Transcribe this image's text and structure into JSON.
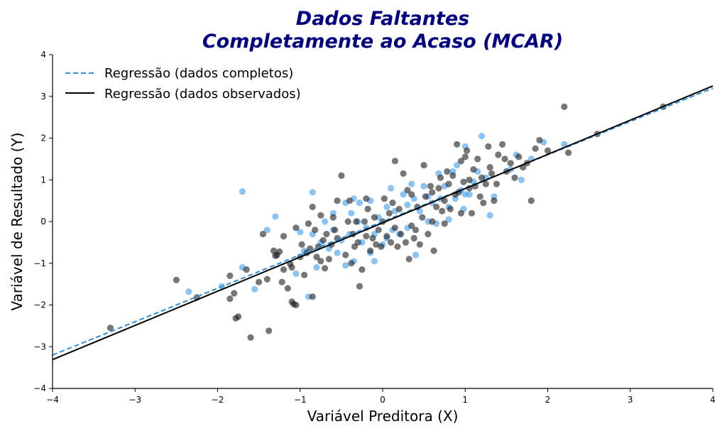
{
  "chart_data": {
    "type": "scatter",
    "title_line1": "Dados Faltantes",
    "title_line2": "Completamente ao Acaso (MCAR)",
    "xlabel": "Variável Preditora (X)",
    "ylabel": "Variável de Resultado (Y)",
    "xlim": [
      -4,
      4
    ],
    "ylim": [
      -4,
      4
    ],
    "xticks": [
      -4,
      -3,
      -2,
      -1,
      0,
      1,
      2,
      3,
      4
    ],
    "yticks": [
      -4,
      -3,
      -2,
      -1,
      0,
      1,
      2,
      3,
      4
    ],
    "xtick_labels": [
      "−4",
      "−3",
      "−2",
      "−1",
      "0",
      "1",
      "2",
      "3",
      "4"
    ],
    "ytick_labels": [
      "−4",
      "−3",
      "−2",
      "−1",
      "0",
      "1",
      "2",
      "3",
      "4"
    ],
    "legend_position": "top-left",
    "colors": {
      "title": "#000080",
      "observed": "#1a1a1a",
      "missing": "#3d9be9",
      "line_complete": "#2b8fdb",
      "line_observed": "#000000"
    },
    "lines": [
      {
        "name": "Regressão (dados completos)",
        "style": "dashed",
        "intercept": 0.0,
        "slope": 0.8
      },
      {
        "name": "Regressão (dados observados)",
        "style": "solid",
        "intercept": -0.03,
        "slope": 0.82
      }
    ],
    "series": [
      {
        "name": "observed",
        "points": [
          [
            -3.3,
            -2.55
          ],
          [
            -2.5,
            -1.4
          ],
          [
            -2.25,
            -1.82
          ],
          [
            -1.85,
            -1.3
          ],
          [
            -1.85,
            -1.85
          ],
          [
            -1.8,
            -1.72
          ],
          [
            -1.78,
            -2.32
          ],
          [
            -1.75,
            -2.28
          ],
          [
            -1.65,
            -1.15
          ],
          [
            -1.6,
            -2.78
          ],
          [
            -1.5,
            -1.45
          ],
          [
            -1.45,
            -0.3
          ],
          [
            -1.4,
            -1.38
          ],
          [
            -1.38,
            -2.62
          ],
          [
            -1.32,
            -0.7
          ],
          [
            -1.3,
            -0.82
          ],
          [
            -1.28,
            -0.8
          ],
          [
            -1.25,
            -0.72
          ],
          [
            -1.22,
            -1.45
          ],
          [
            -1.2,
            -1.15
          ],
          [
            -1.2,
            -0.35
          ],
          [
            -1.15,
            -1.6
          ],
          [
            -1.12,
            -1.02
          ],
          [
            -1.1,
            -1.1
          ],
          [
            -1.1,
            -1.92
          ],
          [
            -1.08,
            -1.98
          ],
          [
            -1.05,
            -2.0
          ],
          [
            -1.05,
            -0.15
          ],
          [
            -1.0,
            -0.85
          ],
          [
            -0.98,
            -0.55
          ],
          [
            -0.95,
            -1.28
          ],
          [
            -0.92,
            -0.75
          ],
          [
            -0.9,
            -0.05
          ],
          [
            -0.88,
            -0.65
          ],
          [
            -0.85,
            -1.8
          ],
          [
            -0.85,
            0.35
          ],
          [
            -0.82,
            -0.2
          ],
          [
            -0.8,
            -0.85
          ],
          [
            -0.78,
            -0.6
          ],
          [
            -0.75,
            -0.95
          ],
          [
            -0.75,
            0.15
          ],
          [
            -0.72,
            -0.45
          ],
          [
            -0.7,
            -1.12
          ],
          [
            -0.68,
            -0.3
          ],
          [
            -0.65,
            -0.9
          ],
          [
            -0.62,
            -0.55
          ],
          [
            -0.6,
            0.1
          ],
          [
            -0.58,
            -0.2
          ],
          [
            -0.55,
            -0.4
          ],
          [
            -0.5,
            1.1
          ],
          [
            -0.45,
            -0.8
          ],
          [
            -0.42,
            0.0
          ],
          [
            -0.4,
            0.5
          ],
          [
            -0.38,
            -1.0
          ],
          [
            -0.36,
            -0.3
          ],
          [
            -0.34,
            -0.6
          ],
          [
            -0.32,
            0.0
          ],
          [
            -0.3,
            -0.5
          ],
          [
            -0.28,
            -1.55
          ],
          [
            -0.25,
            -1.15
          ],
          [
            -0.22,
            0.0
          ],
          [
            -0.2,
            -0.35
          ],
          [
            -0.18,
            0.3
          ],
          [
            -0.15,
            -0.7
          ],
          [
            -0.12,
            -0.4
          ],
          [
            -0.1,
            0.1
          ],
          [
            -0.08,
            -0.55
          ],
          [
            -0.05,
            -0.2
          ],
          [
            -0.02,
            -0.6
          ],
          [
            0.0,
            0.0
          ],
          [
            0.02,
            0.55
          ],
          [
            0.05,
            -0.35
          ],
          [
            0.08,
            0.2
          ],
          [
            0.1,
            -0.5
          ],
          [
            0.12,
            0.45
          ],
          [
            0.15,
            -0.15
          ],
          [
            0.18,
            -0.6
          ],
          [
            0.2,
            0.3
          ],
          [
            0.22,
            -0.3
          ],
          [
            0.25,
            1.15
          ],
          [
            0.28,
            -0.5
          ],
          [
            0.3,
            0.75
          ],
          [
            0.32,
            -0.9
          ],
          [
            0.35,
            0.65
          ],
          [
            0.38,
            -0.4
          ],
          [
            0.4,
            -0.2
          ],
          [
            0.42,
            0.35
          ],
          [
            0.45,
            -0.55
          ],
          [
            0.48,
            0.1
          ],
          [
            0.5,
            1.35
          ],
          [
            0.52,
            0.6
          ],
          [
            0.55,
            -0.3
          ],
          [
            0.58,
            0.85
          ],
          [
            0.6,
            0.0
          ],
          [
            0.62,
            -0.7
          ],
          [
            0.65,
            0.35
          ],
          [
            0.68,
            0.8
          ],
          [
            0.7,
            1.05
          ],
          [
            0.72,
            0.25
          ],
          [
            0.75,
            0.5
          ],
          [
            0.78,
            1.2
          ],
          [
            0.8,
            0.9
          ],
          [
            0.82,
            0.3
          ],
          [
            0.85,
            1.1
          ],
          [
            0.88,
            0.65
          ],
          [
            0.9,
            1.85
          ],
          [
            0.92,
            0.7
          ],
          [
            0.95,
            1.45
          ],
          [
            0.98,
            0.95
          ],
          [
            1.0,
            1.55
          ],
          [
            1.02,
            1.7
          ],
          [
            1.05,
            0.8
          ],
          [
            1.08,
            0.2
          ],
          [
            1.1,
            1.25
          ],
          [
            1.12,
            0.85
          ],
          [
            1.15,
            1.5
          ],
          [
            1.18,
            0.6
          ],
          [
            1.2,
            1.05
          ],
          [
            1.22,
            0.45
          ],
          [
            1.25,
            0.9
          ],
          [
            1.28,
            1.8
          ],
          [
            1.3,
            1.3
          ],
          [
            1.32,
            1.15
          ],
          [
            1.35,
            0.5
          ],
          [
            1.38,
            0.9
          ],
          [
            1.4,
            1.6
          ],
          [
            1.45,
            1.85
          ],
          [
            1.48,
            1.5
          ],
          [
            1.5,
            1.2
          ],
          [
            1.55,
            1.4
          ],
          [
            1.6,
            1.05
          ],
          [
            1.65,
            1.55
          ],
          [
            1.7,
            1.3
          ],
          [
            1.75,
            1.4
          ],
          [
            1.8,
            0.5
          ],
          [
            1.85,
            1.75
          ],
          [
            1.9,
            1.95
          ],
          [
            2.0,
            1.7
          ],
          [
            2.2,
            2.75
          ],
          [
            2.25,
            1.65
          ],
          [
            2.6,
            2.1
          ],
          [
            3.4,
            2.75
          ],
          [
            -0.55,
            0.5
          ],
          [
            -0.2,
            0.55
          ],
          [
            0.15,
            1.45
          ],
          [
            0.35,
            -0.1
          ],
          [
            0.6,
            0.7
          ],
          [
            0.75,
            -0.05
          ],
          [
            0.95,
            0.2
          ],
          [
            1.05,
            1.0
          ]
        ]
      },
      {
        "name": "missing",
        "points": [
          [
            -2.35,
            -1.68
          ],
          [
            -1.95,
            -1.55
          ],
          [
            -1.7,
            -1.1
          ],
          [
            -1.7,
            0.72
          ],
          [
            -1.55,
            -1.62
          ],
          [
            -1.4,
            -0.2
          ],
          [
            -1.3,
            0.12
          ],
          [
            -1.05,
            -1.25
          ],
          [
            -1.0,
            -0.25
          ],
          [
            -0.95,
            -0.7
          ],
          [
            -0.9,
            -1.8
          ],
          [
            -0.85,
            -0.3
          ],
          [
            -0.85,
            0.7
          ],
          [
            -0.8,
            -1.1
          ],
          [
            -0.75,
            -0.5
          ],
          [
            -0.7,
            0.0
          ],
          [
            -0.65,
            -0.65
          ],
          [
            -0.6,
            -0.2
          ],
          [
            -0.6,
            0.2
          ],
          [
            -0.55,
            -0.75
          ],
          [
            -0.5,
            -0.45
          ],
          [
            -0.45,
            -1.05
          ],
          [
            -0.45,
            0.45
          ],
          [
            -0.4,
            -0.3
          ],
          [
            -0.38,
            0.2
          ],
          [
            -0.35,
            -0.95
          ],
          [
            -0.3,
            0.0
          ],
          [
            -0.28,
            0.45
          ],
          [
            -0.25,
            -0.5
          ],
          [
            -0.2,
            -0.15
          ],
          [
            -0.15,
            -0.75
          ],
          [
            -0.15,
            0.5
          ],
          [
            -0.1,
            -0.3
          ],
          [
            -0.05,
            0.1
          ],
          [
            0.0,
            -0.55
          ],
          [
            0.05,
            0.35
          ],
          [
            0.1,
            0.8
          ],
          [
            0.12,
            -0.2
          ],
          [
            0.15,
            0.25
          ],
          [
            0.2,
            -0.3
          ],
          [
            0.25,
            0.65
          ],
          [
            0.3,
            -0.15
          ],
          [
            0.35,
            0.9
          ],
          [
            0.38,
            0.55
          ],
          [
            0.4,
            -0.8
          ],
          [
            0.45,
            0.25
          ],
          [
            0.5,
            0.85
          ],
          [
            0.55,
            0.0
          ],
          [
            0.6,
            0.45
          ],
          [
            0.65,
            -0.05
          ],
          [
            0.68,
            1.15
          ],
          [
            0.7,
            0.55
          ],
          [
            0.75,
            0.85
          ],
          [
            0.8,
            0.35
          ],
          [
            0.85,
            1.2
          ],
          [
            0.88,
            0.55
          ],
          [
            0.9,
            1.35
          ],
          [
            0.95,
            0.75
          ],
          [
            0.98,
            0.3
          ],
          [
            1.0,
            1.8
          ],
          [
            1.05,
            0.65
          ],
          [
            1.1,
            0.95
          ],
          [
            1.15,
            1.2
          ],
          [
            1.2,
            2.05
          ],
          [
            1.25,
            1.05
          ],
          [
            1.3,
            0.15
          ],
          [
            1.35,
            0.6
          ],
          [
            1.55,
            1.25
          ],
          [
            1.62,
            1.6
          ],
          [
            1.68,
            1.0
          ],
          [
            1.8,
            1.5
          ],
          [
            1.95,
            1.9
          ],
          [
            2.2,
            1.85
          ],
          [
            -0.1,
            -0.95
          ],
          [
            0.05,
            -0.4
          ],
          [
            0.3,
            0.4
          ],
          [
            -0.35,
            0.55
          ],
          [
            0.55,
            0.6
          ],
          [
            0.8,
            0.05
          ],
          [
            1.0,
            0.65
          ]
        ]
      }
    ]
  }
}
